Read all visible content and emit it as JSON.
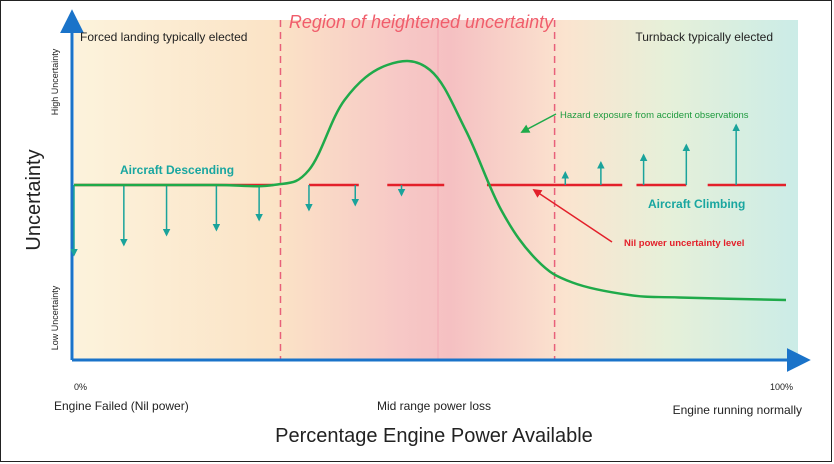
{
  "texts": {
    "region_title": "Region of heightened uncertainty",
    "left_zone": "Forced landing typically elected",
    "right_zone": "Turnback typically elected",
    "y_axis": "Uncertainty",
    "y_high": "High Uncertainty",
    "y_low": "Low Uncertainty",
    "descending": "Aircraft Descending",
    "climbing": "Aircraft Climbing",
    "hazard": "Hazard exposure from accident observations",
    "nil_power": "Nil power uncertainty level",
    "x_0": "0%",
    "x_100": "100%",
    "x_left": "Engine Failed (Nil power)",
    "x_mid": "Mid range power loss",
    "x_right": "Engine running normally",
    "x_axis": "Percentage Engine Power Available"
  },
  "colors": {
    "axis": "#1a73c9",
    "curve": "#1faa4a",
    "baseline": "#e3202a",
    "arrow": "#1aa39b",
    "region_title": "#f05d6b",
    "descending": "#19a6a0",
    "callout_green": "#1e9a3e",
    "callout_red": "#e3202a"
  },
  "chart_data": {
    "type": "line",
    "x": [
      0,
      10,
      20,
      28,
      33,
      38,
      44,
      50,
      55,
      60,
      65,
      70,
      78,
      85,
      100
    ],
    "series": [
      {
        "values": [
          0,
          0,
          0,
          0,
          0.3,
          1.7,
          2.4,
          2.3,
          1.1,
          -0.5,
          -1.5,
          -1.95,
          -2.2,
          -2.25,
          -2.3
        ]
      }
    ],
    "baseline_segments": [
      [
        0,
        28
      ],
      [
        33,
        40
      ],
      [
        44,
        52
      ],
      [
        58,
        77
      ],
      [
        79,
        86
      ],
      [
        89,
        100
      ]
    ],
    "descend_arrows": [
      {
        "x": 0,
        "value": -1.4
      },
      {
        "x": 7,
        "value": -1.2
      },
      {
        "x": 13,
        "value": -1.0
      },
      {
        "x": 20,
        "value": -0.9
      },
      {
        "x": 26,
        "value": -0.7
      },
      {
        "x": 33,
        "value": -0.5
      },
      {
        "x": 39.5,
        "value": -0.4
      },
      {
        "x": 46,
        "value": -0.2
      }
    ],
    "climb_arrows": [
      {
        "x": 69,
        "value": 0.25
      },
      {
        "x": 74,
        "value": 0.45
      },
      {
        "x": 80,
        "value": 0.6
      },
      {
        "x": 86,
        "value": 0.8
      },
      {
        "x": 93,
        "value": 1.2
      }
    ],
    "dividers_x": [
      29,
      67.5
    ],
    "xlim": [
      0,
      100
    ],
    "ylim": [
      -3,
      3
    ]
  }
}
